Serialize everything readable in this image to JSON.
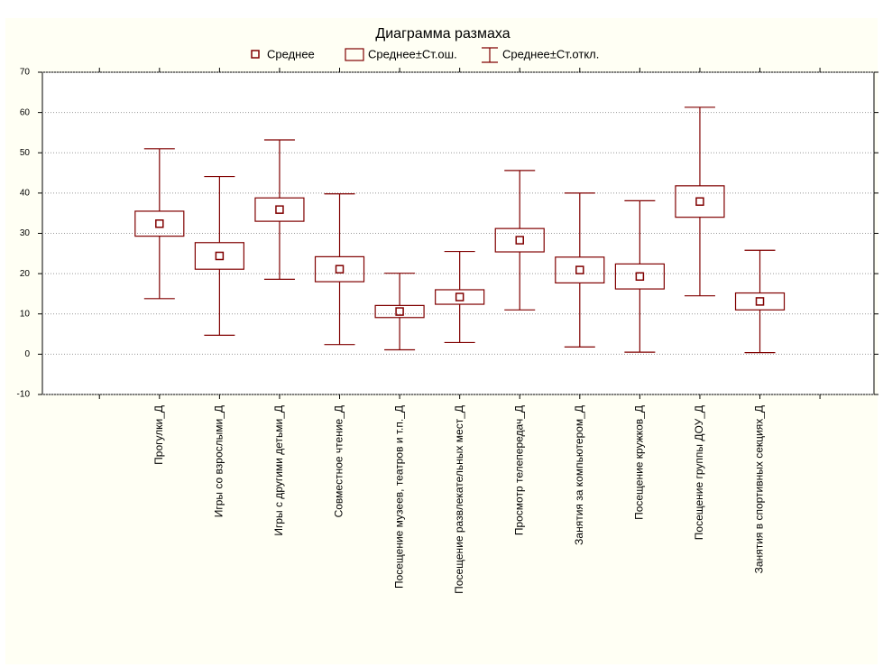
{
  "chart_data": {
    "type": "box",
    "title": "Диаграмма размаха",
    "legend": [
      "Среднее",
      "Среднее±Ст.ош.",
      "Среднее±Ст.откл."
    ],
    "color": "#800000",
    "categories": [
      "Прогулки_Д",
      "Игры со взрослыми_Д",
      "Игры с другими детьми_Д",
      "Совместное чтение_Д",
      "Посещение музеев, театров и т.п._Д",
      "Посещение развлекательных мест_Д",
      "Просмотр телепередач_Д",
      "Занятия за компьютером_Д",
      "Посещение кружков_Д",
      "Посещение группы ДОУ_Д",
      "Занятия в спортивных секциях_Д"
    ],
    "means": [
      32.4,
      24.4,
      35.9,
      21.1,
      10.6,
      14.2,
      28.3,
      20.9,
      19.3,
      37.9,
      13.1
    ],
    "se": [
      3.1,
      3.3,
      2.9,
      3.1,
      1.5,
      1.8,
      2.9,
      3.2,
      3.1,
      3.9,
      2.1
    ],
    "sd": [
      18.6,
      19.7,
      17.3,
      18.7,
      9.5,
      11.3,
      17.3,
      19.1,
      18.8,
      23.4,
      12.7
    ],
    "ylim": [
      -10,
      70
    ],
    "yticks": [
      -10,
      0,
      10,
      20,
      30,
      40,
      50,
      60,
      70
    ],
    "grid": true
  }
}
